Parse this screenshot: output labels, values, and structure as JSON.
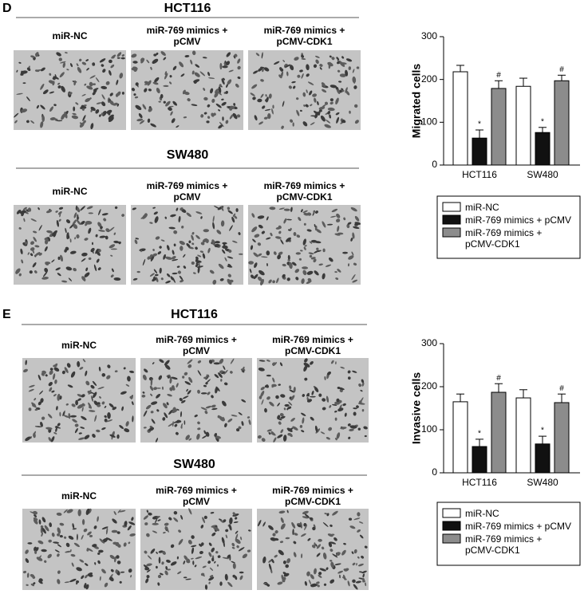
{
  "panels": [
    {
      "letter": "D",
      "rows": [
        {
          "title": "HCT116",
          "labels": [
            "miR-NC",
            "miR-769 mimics +\npCMV",
            "miR-769 mimics +\npCMV-CDK1"
          ]
        },
        {
          "title": "SW480",
          "labels": [
            "miR-NC",
            "miR-769 mimics +\npCMV",
            "miR-769 mimics +\npCMV-CDK1"
          ]
        }
      ]
    },
    {
      "letter": "E",
      "rows": [
        {
          "title": "HCT116",
          "labels": [
            "miR-NC",
            "miR-769 mimics +\npCMV",
            "miR-769 mimics +\npCMV-CDK1"
          ]
        },
        {
          "title": "SW480",
          "labels": [
            "miR-NC",
            "miR-769 mimics +\npCMV",
            "miR-769 mimics +\npCMV-CDK1"
          ]
        }
      ]
    }
  ],
  "chart_data": [
    {
      "type": "bar",
      "ylabel": "Migrated cells",
      "categories": [
        "HCT116",
        "SW480"
      ],
      "ylim": [
        0,
        300
      ],
      "yticks": [
        0,
        100,
        200,
        300
      ],
      "series": [
        {
          "name": "miR-NC",
          "color": "#ffffff",
          "values": [
            218,
            184
          ],
          "errors": [
            15,
            19
          ],
          "markers": [
            null,
            null
          ]
        },
        {
          "name": "miR-769 mimics + pCMV",
          "color": "#111111",
          "values": [
            63,
            76
          ],
          "errors": [
            19,
            12
          ],
          "markers": [
            "*",
            "*"
          ]
        },
        {
          "name": "miR-769 mimics +\npCMV-CDK1",
          "color": "#8c8c8c",
          "values": [
            179,
            197
          ],
          "errors": [
            18,
            13
          ],
          "markers": [
            "#",
            "#"
          ]
        }
      ]
    },
    {
      "type": "bar",
      "ylabel": "Invasive cells",
      "categories": [
        "HCT116",
        "SW480"
      ],
      "ylim": [
        0,
        300
      ],
      "yticks": [
        0,
        100,
        200,
        300
      ],
      "series": [
        {
          "name": "miR-NC",
          "color": "#ffffff",
          "values": [
            165,
            174
          ],
          "errors": [
            18,
            19
          ],
          "markers": [
            null,
            null
          ]
        },
        {
          "name": "miR-769 mimics + pCMV",
          "color": "#111111",
          "values": [
            61,
            67
          ],
          "errors": [
            17,
            18
          ],
          "markers": [
            "*",
            "*"
          ]
        },
        {
          "name": "miR-769 mimics +\npCMV-CDK1",
          "color": "#8c8c8c",
          "values": [
            187,
            163
          ],
          "errors": [
            20,
            20
          ],
          "markers": [
            "#",
            "#"
          ]
        }
      ]
    }
  ]
}
